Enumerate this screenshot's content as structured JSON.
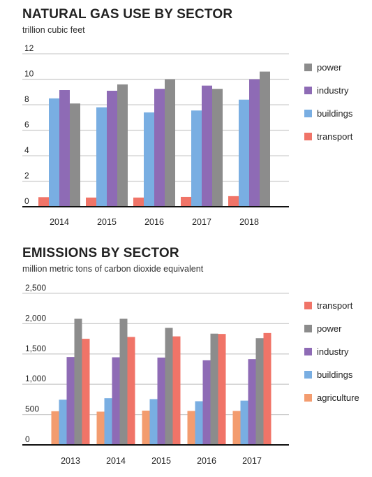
{
  "chart_data": [
    {
      "type": "bar",
      "title": "NATURAL GAS USE BY SECTOR",
      "subtitle": "trillion cubic feet",
      "categories": [
        "2014",
        "2015",
        "2016",
        "2017",
        "2018"
      ],
      "ylim": [
        0,
        12
      ],
      "yticks": [
        0,
        2,
        4,
        6,
        8,
        10,
        12
      ],
      "ytick_labels": [
        "0",
        "2",
        "4",
        "6",
        "8",
        "10",
        "12"
      ],
      "grid": true,
      "legend_position": "right",
      "series": [
        {
          "name": "transport",
          "color": "#f07468",
          "values": [
            0.75,
            0.72,
            0.72,
            0.77,
            0.83
          ]
        },
        {
          "name": "buildings",
          "color": "#79aee2",
          "values": [
            8.5,
            7.8,
            7.4,
            7.55,
            8.4
          ]
        },
        {
          "name": "industry",
          "color": "#8e6bb5",
          "values": [
            9.15,
            9.1,
            9.25,
            9.5,
            10.0
          ]
        },
        {
          "name": "power",
          "color": "#8c8c8c",
          "values": [
            8.1,
            9.6,
            10.0,
            9.25,
            10.6
          ]
        }
      ],
      "legend_order": [
        "power",
        "industry",
        "buildings",
        "transport"
      ]
    },
    {
      "type": "bar",
      "title": "EMISSIONS BY SECTOR",
      "subtitle": "million metric tons of carbon dioxide equivalent",
      "categories": [
        "2013",
        "2014",
        "2015",
        "2016",
        "2017"
      ],
      "ylim": [
        0,
        2500
      ],
      "yticks": [
        0,
        500,
        1000,
        1500,
        2000,
        2500
      ],
      "ytick_labels": [
        "0",
        "500",
        "1,000",
        "1,500",
        "2,000",
        "2,500"
      ],
      "grid": true,
      "legend_position": "right",
      "series": [
        {
          "name": "agriculture",
          "color": "#f39c6f",
          "values": [
            555,
            548,
            565,
            560,
            560
          ]
        },
        {
          "name": "buildings",
          "color": "#79aee2",
          "values": [
            745,
            770,
            755,
            720,
            730
          ]
        },
        {
          "name": "industry",
          "color": "#8e6bb5",
          "values": [
            1450,
            1445,
            1440,
            1395,
            1415
          ]
        },
        {
          "name": "power",
          "color": "#8c8c8c",
          "values": [
            2080,
            2080,
            1930,
            1835,
            1760
          ]
        },
        {
          "name": "transport",
          "color": "#f07468",
          "values": [
            1750,
            1780,
            1790,
            1830,
            1845
          ]
        }
      ],
      "legend_order": [
        "transport",
        "power",
        "industry",
        "buildings",
        "agriculture"
      ]
    }
  ]
}
